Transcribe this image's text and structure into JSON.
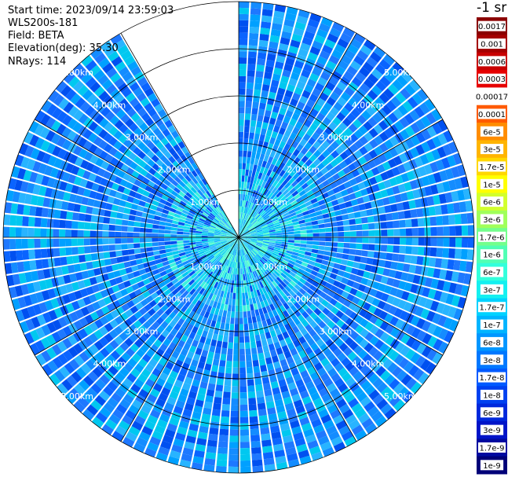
{
  "header": {
    "start_time": "Start time: 2023/09/14 23:59:03",
    "instrument": "WLS200s-181",
    "field": "Field: BETA",
    "elevation": "Elevation(deg): 35.30",
    "nrays": "NRays: 114"
  },
  "colorbar": {
    "title": "-1 sr",
    "labels": [
      "0.0017",
      "0.001",
      "0.0006",
      "0.0003",
      "0.00017",
      "0.0001",
      "6e-5",
      "3e-5",
      "1.7e-5",
      "1e-5",
      "6e-6",
      "3e-6",
      "1.7e-6",
      "1e-6",
      "6e-7",
      "3e-7",
      "1.7e-7",
      "1e-7",
      "6e-8",
      "3e-8",
      "1.7e-8",
      "1e-8",
      "6e-9",
      "3e-9",
      "1.7e-9",
      "1e-9"
    ],
    "colors": [
      "#8b0000",
      "#a50000",
      "#c80000",
      "#e60000",
      "#ffffff",
      "#ff5a00",
      "#ff8c00",
      "#ffb400",
      "#ffd700",
      "#ffff00",
      "#d2ff2d",
      "#a0ff5a",
      "#73ff8c",
      "#50ffb4",
      "#32ffdc",
      "#14f0f0",
      "#00d2ff",
      "#00b4ff",
      "#0096ff",
      "#0078ff",
      "#005aff",
      "#0041f0",
      "#0028dc",
      "#0014c8",
      "#000aa0",
      "#000078"
    ]
  },
  "chart_data": {
    "type": "ppi-polar",
    "field": "BETA",
    "units": "-1 sr",
    "nrays": 114,
    "elevation_deg": 35.3,
    "range_rings_km": [
      1.0,
      2.0,
      3.0,
      4.0,
      5.0
    ],
    "range_ring_labels": [
      "1.00km",
      "2.00km",
      "3.00km",
      "4.00km",
      "5.00km"
    ],
    "max_range_km": 5.0,
    "spoke_azimuths_deg": [
      0,
      30,
      60,
      90,
      120,
      150,
      180,
      210,
      240,
      270,
      300,
      330
    ],
    "missing_sector_azimuth_deg": [
      329,
      360
    ],
    "dominant_value_range": [
      "1e-8",
      "1.7e-7"
    ]
  }
}
